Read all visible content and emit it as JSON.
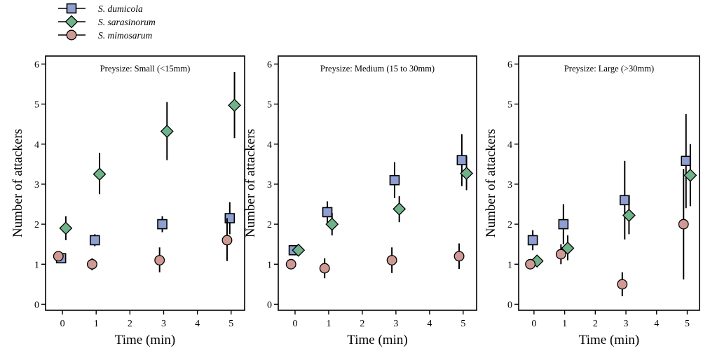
{
  "legend": [
    {
      "name": "S. dumicola",
      "marker": "square",
      "color": "#8f9fd1"
    },
    {
      "name": "S. sarasinorum",
      "marker": "diamond",
      "color": "#6fb38a"
    },
    {
      "name": "S. mimosarum",
      "marker": "circle",
      "color": "#cf9a94"
    }
  ],
  "chart_data": [
    {
      "type": "scatter",
      "title": "Preysize: Small (<15mm)",
      "xlabel": "Time (min)",
      "ylabel": "Number of attackers",
      "xlim": [
        -0.5,
        5.4
      ],
      "ylim": [
        -0.15,
        6.2
      ],
      "xticks": [
        0,
        1,
        2,
        3,
        4,
        5
      ],
      "yticks": [
        0,
        1,
        2,
        3,
        4,
        5,
        6
      ],
      "series": [
        {
          "name": "S. dumicola",
          "marker": "square",
          "color": "#8f9fd1",
          "points": [
            {
              "x": 0,
              "y": 1.15,
              "lo": 1.1,
              "hi": 1.2
            },
            {
              "x": 1,
              "y": 1.6,
              "lo": 1.45,
              "hi": 1.75
            },
            {
              "x": 3,
              "y": 2.0,
              "lo": 1.8,
              "hi": 2.2
            },
            {
              "x": 5,
              "y": 2.15,
              "lo": 1.75,
              "hi": 2.55
            }
          ]
        },
        {
          "name": "S. sarasinorum",
          "marker": "diamond",
          "color": "#6fb38a",
          "points": [
            {
              "x": 0,
              "y": 1.9,
              "lo": 1.6,
              "hi": 2.2
            },
            {
              "x": 1,
              "y": 3.25,
              "lo": 2.75,
              "hi": 3.78
            },
            {
              "x": 3,
              "y": 4.32,
              "lo": 3.6,
              "hi": 5.05
            },
            {
              "x": 5,
              "y": 4.97,
              "lo": 4.15,
              "hi": 5.8
            }
          ]
        },
        {
          "name": "S. mimosarum",
          "marker": "circle",
          "color": "#cf9a94",
          "points": [
            {
              "x": 0,
              "y": 1.2,
              "lo": 1.15,
              "hi": 1.25
            },
            {
              "x": 1,
              "y": 1.0,
              "lo": 0.85,
              "hi": 1.15
            },
            {
              "x": 3,
              "y": 1.1,
              "lo": 0.8,
              "hi": 1.42
            },
            {
              "x": 5,
              "y": 1.6,
              "lo": 1.08,
              "hi": 2.15
            }
          ]
        }
      ]
    },
    {
      "type": "scatter",
      "title": "Preysize: Medium (15 to 30mm)",
      "xlabel": "Time (min)",
      "ylabel": "Number of attackers",
      "xlim": [
        -0.5,
        5.4
      ],
      "ylim": [
        -0.15,
        6.2
      ],
      "xticks": [
        0,
        1,
        2,
        3,
        4,
        5
      ],
      "yticks": [
        0,
        1,
        2,
        3,
        4,
        5,
        6
      ],
      "series": [
        {
          "name": "S. dumicola",
          "marker": "square",
          "color": "#8f9fd1",
          "points": [
            {
              "x": 0,
              "y": 1.35,
              "lo": 1.3,
              "hi": 1.4
            },
            {
              "x": 1,
              "y": 2.3,
              "lo": 2.02,
              "hi": 2.57
            },
            {
              "x": 3,
              "y": 3.1,
              "lo": 2.65,
              "hi": 3.55
            },
            {
              "x": 5,
              "y": 3.6,
              "lo": 2.95,
              "hi": 4.25
            }
          ]
        },
        {
          "name": "S. sarasinorum",
          "marker": "diamond",
          "color": "#6fb38a",
          "points": [
            {
              "x": 0,
              "y": 1.35,
              "lo": 1.3,
              "hi": 1.4
            },
            {
              "x": 1,
              "y": 2.0,
              "lo": 1.72,
              "hi": 2.28
            },
            {
              "x": 3,
              "y": 2.38,
              "lo": 2.05,
              "hi": 2.7
            },
            {
              "x": 5,
              "y": 3.27,
              "lo": 2.85,
              "hi": 3.7
            }
          ]
        },
        {
          "name": "S. mimosarum",
          "marker": "circle",
          "color": "#cf9a94",
          "points": [
            {
              "x": 0,
              "y": 1.0,
              "lo": 0.95,
              "hi": 1.05
            },
            {
              "x": 1,
              "y": 0.9,
              "lo": 0.65,
              "hi": 1.15
            },
            {
              "x": 3,
              "y": 1.1,
              "lo": 0.78,
              "hi": 1.42
            },
            {
              "x": 5,
              "y": 1.2,
              "lo": 0.88,
              "hi": 1.52
            }
          ]
        }
      ]
    },
    {
      "type": "scatter",
      "title": "Preysize: Large (>30mm)",
      "xlabel": "Time (min)",
      "ylabel": "Number of attackers",
      "xlim": [
        -0.5,
        5.4
      ],
      "ylim": [
        -0.15,
        6.2
      ],
      "xticks": [
        0,
        1,
        2,
        3,
        4,
        5
      ],
      "yticks": [
        0,
        1,
        2,
        3,
        4,
        5,
        6
      ],
      "series": [
        {
          "name": "S. dumicola",
          "marker": "square",
          "color": "#8f9fd1",
          "points": [
            {
              "x": 0,
              "y": 1.6,
              "lo": 1.35,
              "hi": 1.85
            },
            {
              "x": 1,
              "y": 2.0,
              "lo": 1.5,
              "hi": 2.5
            },
            {
              "x": 3,
              "y": 2.6,
              "lo": 1.62,
              "hi": 3.58
            },
            {
              "x": 5,
              "y": 3.58,
              "lo": 2.4,
              "hi": 4.75
            }
          ]
        },
        {
          "name": "S. sarasinorum",
          "marker": "diamond",
          "color": "#6fb38a",
          "points": [
            {
              "x": 0,
              "y": 1.08,
              "lo": 1.03,
              "hi": 1.13
            },
            {
              "x": 1,
              "y": 1.4,
              "lo": 1.1,
              "hi": 1.72
            },
            {
              "x": 3,
              "y": 2.22,
              "lo": 1.75,
              "hi": 2.7
            },
            {
              "x": 5,
              "y": 3.22,
              "lo": 2.45,
              "hi": 4.0
            }
          ]
        },
        {
          "name": "S. mimosarum",
          "marker": "circle",
          "color": "#cf9a94",
          "points": [
            {
              "x": 0,
              "y": 1.0,
              "lo": 0.95,
              "hi": 1.05
            },
            {
              "x": 1,
              "y": 1.25,
              "lo": 1.0,
              "hi": 1.5
            },
            {
              "x": 3,
              "y": 0.5,
              "lo": 0.2,
              "hi": 0.8
            },
            {
              "x": 5,
              "y": 2.0,
              "lo": 0.62,
              "hi": 3.38
            }
          ]
        }
      ]
    }
  ]
}
